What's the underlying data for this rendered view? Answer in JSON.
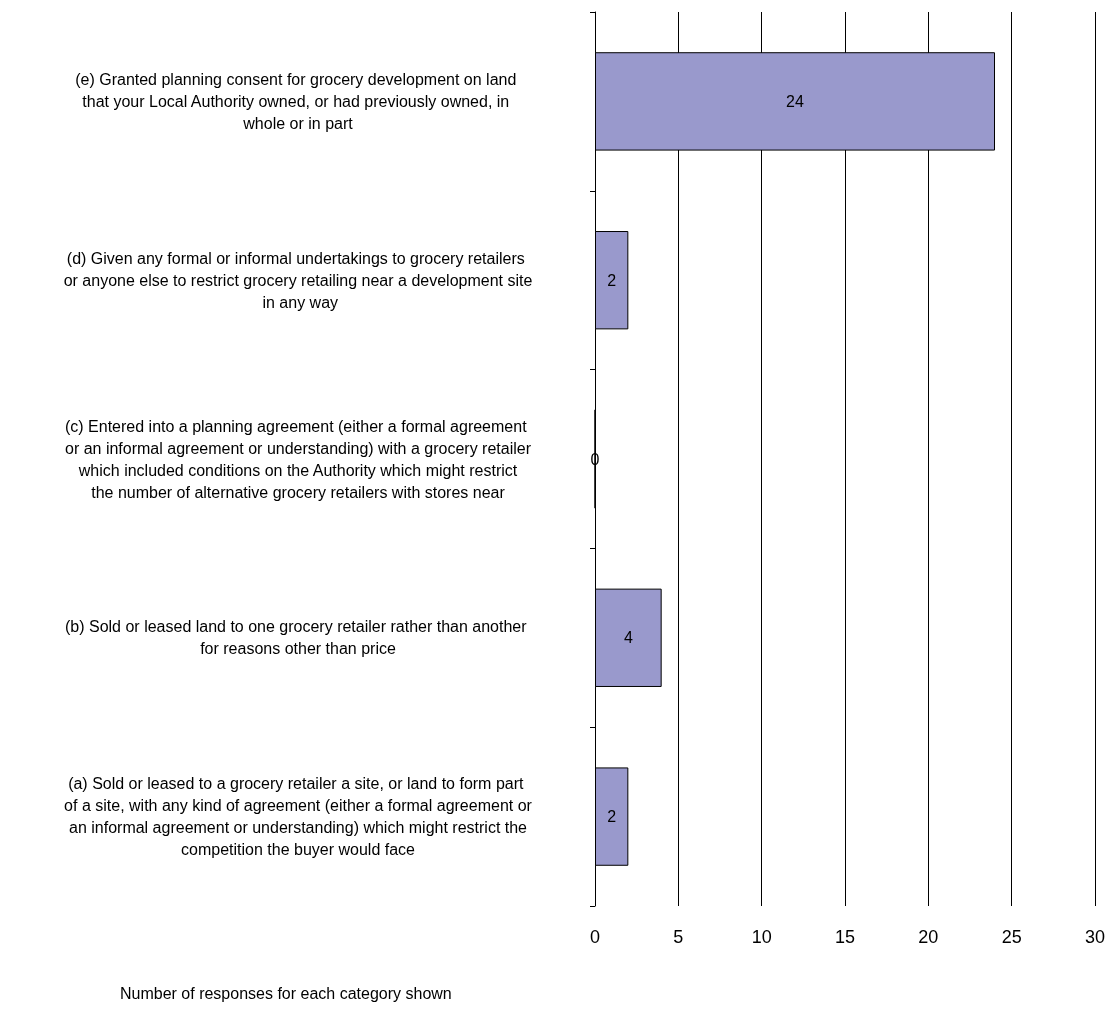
{
  "chart_data": {
    "type": "bar",
    "orientation": "horizontal",
    "categories": [
      "(e) Granted planning consent for grocery development on land that your Local Authority owned, or had previously owned, in whole or in part",
      "(d) Given any formal or informal undertakings to grocery retailers or anyone else to restrict grocery retailing near a development site in any way",
      "(c) Entered into a planning agreement (either a formal agreement or an informal agreement or understanding) with a grocery retailer which included conditions on the Authority which might restrict the number of alternative grocery retailers with stores near",
      "(b) Sold or leased land to one grocery retailer rather than another for reasons other than price",
      "(a) Sold or leased to a grocery retailer a site, or land to form part of a site, with any kind of agreement (either a formal agreement or an informal agreement or understanding) which might restrict the competition the buyer would face"
    ],
    "values": [
      24,
      2,
      0,
      4,
      2
    ],
    "color": "#9999cc",
    "data_labels": true,
    "xlim": [
      0,
      30
    ],
    "xticks": [
      0,
      5,
      10,
      15,
      20,
      25,
      30
    ],
    "grid": "x",
    "annotations": [
      "Number of responses for each category shown"
    ]
  }
}
